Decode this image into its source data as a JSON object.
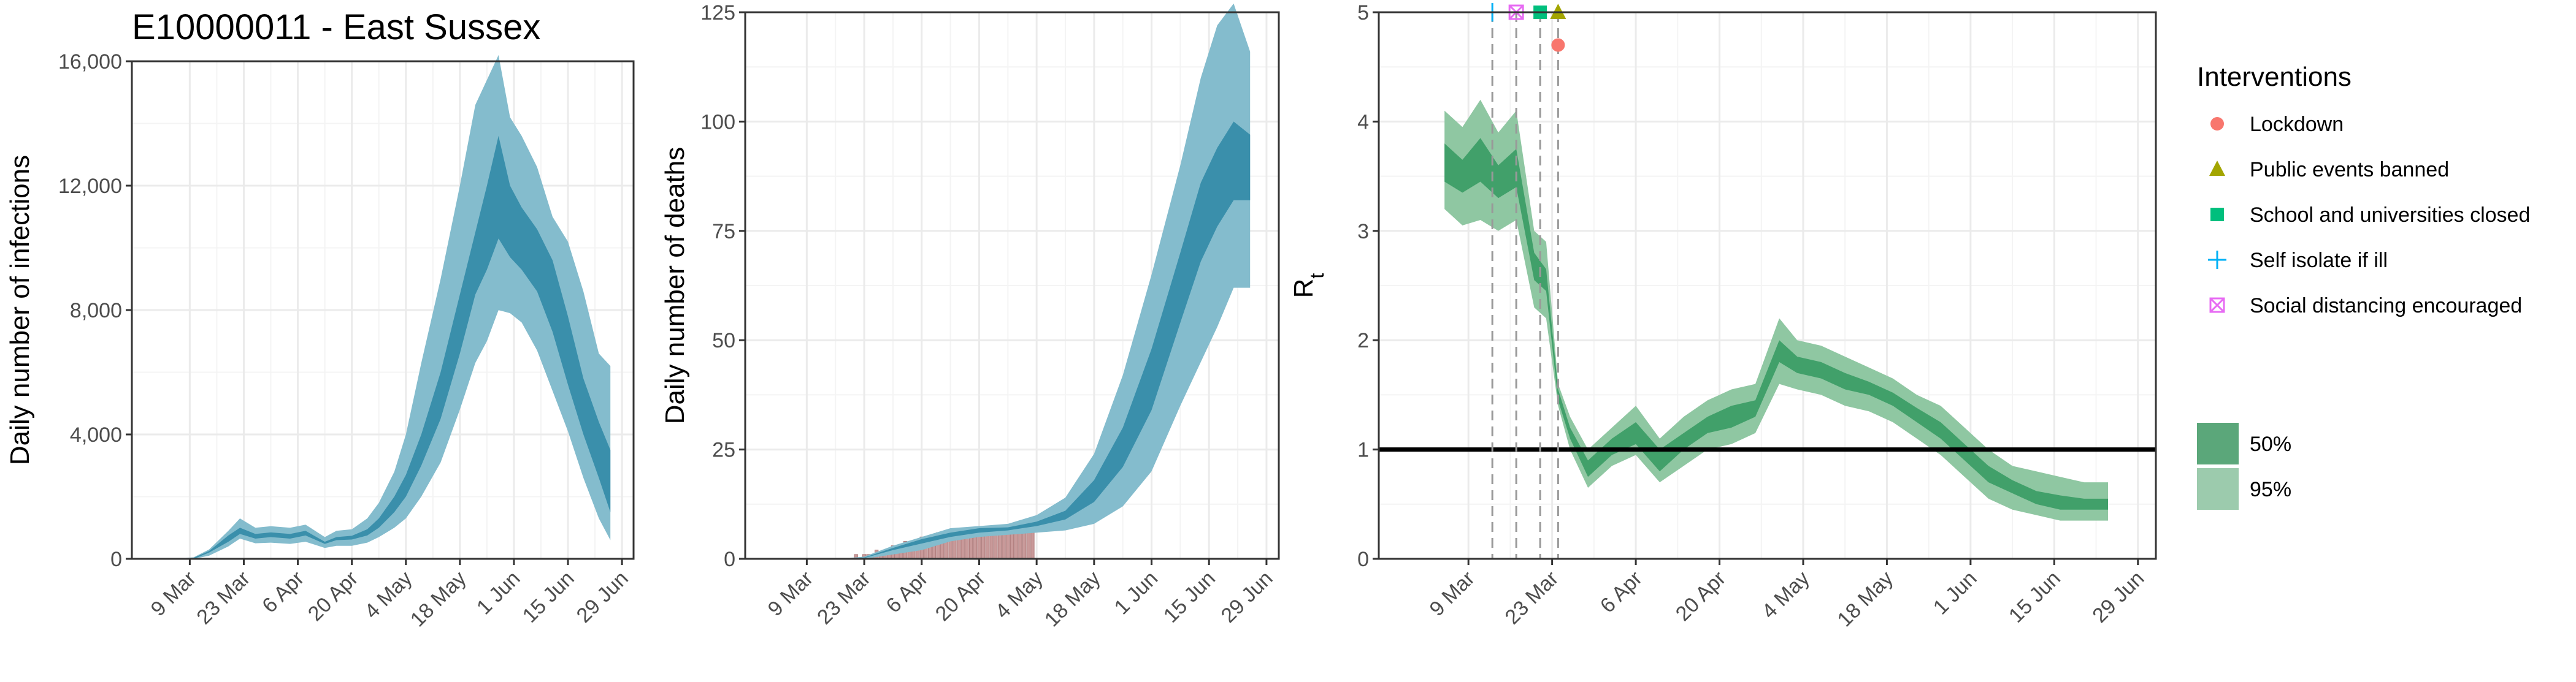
{
  "title": "E10000011 - East Sussex",
  "chart_data": [
    {
      "type": "area",
      "ylabel": "Daily number of infections",
      "xlabel": "",
      "ylim": [
        0,
        16000
      ],
      "yticks": [
        0,
        4000,
        8000,
        12000,
        16000
      ],
      "ytick_labels": [
        "0",
        "4,000",
        "8,000",
        "12,000",
        "16,000"
      ],
      "xlim": [
        "2020-02-23",
        "2020-07-02"
      ],
      "xticks": [
        "2020-03-09",
        "2020-03-23",
        "2020-04-06",
        "2020-04-20",
        "2020-05-04",
        "2020-05-18",
        "2020-06-01",
        "2020-06-15",
        "2020-06-29"
      ],
      "xtick_labels": [
        "9 Mar",
        "23 Mar",
        "6 Apr",
        "20 Apr",
        "4 May",
        "18 May",
        "1 Jun",
        "15 Jun",
        "29 Jun"
      ],
      "series": [
        {
          "band": "95%",
          "x": [
            "2020-03-05",
            "2020-03-10",
            "2020-03-14",
            "2020-03-19",
            "2020-03-22",
            "2020-03-26",
            "2020-03-30",
            "2020-04-04",
            "2020-04-08",
            "2020-04-13",
            "2020-04-16",
            "2020-04-20",
            "2020-04-24",
            "2020-04-27",
            "2020-05-01",
            "2020-05-04",
            "2020-05-08",
            "2020-05-13",
            "2020-05-18",
            "2020-05-22",
            "2020-05-25",
            "2020-05-28",
            "2020-05-31",
            "2020-06-03",
            "2020-06-07",
            "2020-06-11",
            "2020-06-15",
            "2020-06-19",
            "2020-06-23",
            "2020-06-26"
          ],
          "lower": [
            0,
            0,
            100,
            400,
            650,
            500,
            520,
            480,
            550,
            350,
            420,
            420,
            520,
            700,
            1000,
            1300,
            2000,
            3100,
            4800,
            6300,
            7000,
            8000,
            7900,
            7600,
            6700,
            5400,
            4100,
            2600,
            1300,
            600
          ],
          "upper": [
            0,
            50,
            300,
            900,
            1300,
            1000,
            1050,
            1000,
            1100,
            700,
            900,
            950,
            1300,
            1800,
            2800,
            4000,
            6300,
            9000,
            12000,
            14600,
            15400,
            16200,
            14200,
            13600,
            12600,
            11000,
            10200,
            8600,
            6600,
            6200
          ]
        },
        {
          "band": "50%",
          "x": [
            "2020-03-05",
            "2020-03-10",
            "2020-03-14",
            "2020-03-19",
            "2020-03-22",
            "2020-03-26",
            "2020-03-30",
            "2020-04-04",
            "2020-04-08",
            "2020-04-13",
            "2020-04-16",
            "2020-04-20",
            "2020-04-24",
            "2020-04-27",
            "2020-05-01",
            "2020-05-04",
            "2020-05-08",
            "2020-05-13",
            "2020-05-18",
            "2020-05-22",
            "2020-05-25",
            "2020-05-28",
            "2020-05-31",
            "2020-06-03",
            "2020-06-07",
            "2020-06-11",
            "2020-06-15",
            "2020-06-19",
            "2020-06-23",
            "2020-06-26"
          ],
          "lower": [
            0,
            0,
            200,
            550,
            800,
            650,
            700,
            650,
            750,
            480,
            600,
            620,
            750,
            1000,
            1500,
            2000,
            3000,
            4500,
            6600,
            8500,
            9300,
            10300,
            9700,
            9300,
            8600,
            7300,
            5600,
            4000,
            2600,
            1500
          ],
          "upper": [
            0,
            30,
            250,
            750,
            1000,
            800,
            850,
            800,
            900,
            550,
            700,
            740,
            950,
            1300,
            2000,
            2700,
            4000,
            6000,
            8500,
            10500,
            12000,
            13600,
            12000,
            11300,
            10600,
            9600,
            7800,
            5800,
            4400,
            3500
          ]
        }
      ]
    },
    {
      "type": "area",
      "ylabel": "Daily number of deaths",
      "xlabel": "",
      "ylim": [
        0,
        125
      ],
      "yticks": [
        0,
        25,
        50,
        75,
        100,
        125
      ],
      "ytick_labels": [
        "0",
        "25",
        "50",
        "75",
        "100",
        "125"
      ],
      "xlim": [
        "2020-02-23",
        "2020-07-02"
      ],
      "xticks": [
        "2020-03-09",
        "2020-03-23",
        "2020-04-06",
        "2020-04-20",
        "2020-05-04",
        "2020-05-18",
        "2020-06-01",
        "2020-06-15",
        "2020-06-29"
      ],
      "xtick_labels": [
        "9 Mar",
        "23 Mar",
        "6 Apr",
        "20 Apr",
        "4 May",
        "18 May",
        "1 Jun",
        "15 Jun",
        "29 Jun"
      ],
      "observed_deaths": {
        "start": "2020-03-19",
        "end": "2020-05-03",
        "values": [
          0,
          0,
          1,
          0,
          1,
          1,
          1,
          2,
          1,
          2,
          2,
          3,
          2,
          3,
          4,
          3,
          4,
          4,
          5,
          5,
          4,
          5,
          6,
          5,
          5,
          6,
          5,
          6,
          6,
          5,
          6,
          6,
          7,
          6,
          6,
          7,
          6,
          7,
          6,
          7,
          6,
          7,
          7,
          6,
          7,
          7
        ]
      },
      "series": [
        {
          "band": "95%",
          "x": [
            "2020-03-17",
            "2020-03-23",
            "2020-03-30",
            "2020-04-06",
            "2020-04-13",
            "2020-04-20",
            "2020-04-27",
            "2020-05-04",
            "2020-05-11",
            "2020-05-18",
            "2020-05-25",
            "2020-06-01",
            "2020-06-08",
            "2020-06-13",
            "2020-06-17",
            "2020-06-21",
            "2020-06-25"
          ],
          "lower": [
            0,
            0,
            1,
            2,
            4,
            5,
            5.5,
            6,
            6.5,
            8,
            12,
            20,
            35,
            45,
            53,
            62,
            62
          ],
          "upper": [
            0,
            0.5,
            3,
            5,
            7,
            7.5,
            8,
            10,
            14,
            24,
            42,
            65,
            90,
            110,
            122,
            127,
            116
          ]
        },
        {
          "band": "50%",
          "x": [
            "2020-03-17",
            "2020-03-23",
            "2020-03-30",
            "2020-04-06",
            "2020-04-13",
            "2020-04-20",
            "2020-04-27",
            "2020-05-04",
            "2020-05-11",
            "2020-05-18",
            "2020-05-25",
            "2020-06-01",
            "2020-06-08",
            "2020-06-13",
            "2020-06-17",
            "2020-06-21",
            "2020-06-25"
          ],
          "lower": [
            0,
            0.2,
            2,
            3.5,
            5,
            6,
            6.5,
            7.5,
            9,
            13,
            21,
            34,
            54,
            68,
            76,
            82,
            82
          ],
          "upper": [
            0,
            0.3,
            2.5,
            4.5,
            6,
            7,
            7.2,
            8.5,
            11,
            18,
            30,
            48,
            70,
            86,
            94,
            100,
            97
          ]
        }
      ]
    },
    {
      "type": "area",
      "ylabel": "Rt",
      "xlabel": "",
      "ylim": [
        0,
        5
      ],
      "yticks": [
        0,
        1,
        2,
        3,
        4,
        5
      ],
      "ytick_labels": [
        "0",
        "1",
        "2",
        "3",
        "4",
        "5"
      ],
      "xlim": [
        "2020-02-23",
        "2020-07-02"
      ],
      "xticks": [
        "2020-03-09",
        "2020-03-23",
        "2020-04-06",
        "2020-04-20",
        "2020-05-04",
        "2020-05-18",
        "2020-06-01",
        "2020-06-15",
        "2020-06-29"
      ],
      "xtick_labels": [
        "9 Mar",
        "23 Mar",
        "6 Apr",
        "20 Apr",
        "4 May",
        "18 May",
        "1 Jun",
        "15 Jun",
        "29 Jun"
      ],
      "reference_line": 1,
      "interventions": [
        {
          "name": "Lockdown",
          "date": "2020-03-24",
          "y": 4.7,
          "color": "#F8766D",
          "marker": "circle"
        },
        {
          "name": "Public events banned",
          "date": "2020-03-24",
          "y": 5.0,
          "color": "#A3A500",
          "marker": "triangle"
        },
        {
          "name": "School and universities closed",
          "date": "2020-03-21",
          "y": 5.0,
          "color": "#00BF7D",
          "marker": "square"
        },
        {
          "name": "Self isolate if ill",
          "date": "2020-03-13",
          "y": 5.0,
          "color": "#00B0F6",
          "marker": "plus"
        },
        {
          "name": "Social distancing encouraged",
          "date": "2020-03-17",
          "y": 5.0,
          "color": "#E76BF3",
          "marker": "square-x"
        }
      ],
      "series": [
        {
          "band": "95%",
          "x": [
            "2020-03-05",
            "2020-03-08",
            "2020-03-11",
            "2020-03-14",
            "2020-03-17",
            "2020-03-20",
            "2020-03-22",
            "2020-03-24",
            "2020-03-26",
            "2020-03-29",
            "2020-04-02",
            "2020-04-06",
            "2020-04-10",
            "2020-04-14",
            "2020-04-18",
            "2020-04-22",
            "2020-04-26",
            "2020-04-30",
            "2020-05-03",
            "2020-05-07",
            "2020-05-11",
            "2020-05-15",
            "2020-05-19",
            "2020-05-23",
            "2020-05-27",
            "2020-05-31",
            "2020-06-04",
            "2020-06-08",
            "2020-06-12",
            "2020-06-16",
            "2020-06-20",
            "2020-06-24"
          ],
          "lower": [
            3.2,
            3.05,
            3.1,
            3.0,
            3.1,
            2.3,
            2.2,
            1.4,
            1.0,
            0.65,
            0.85,
            0.95,
            0.7,
            0.85,
            1.0,
            1.05,
            1.15,
            1.6,
            1.55,
            1.5,
            1.4,
            1.35,
            1.25,
            1.1,
            0.95,
            0.75,
            0.55,
            0.45,
            0.4,
            0.35,
            0.35,
            0.35
          ],
          "upper": [
            4.1,
            3.95,
            4.2,
            3.9,
            4.1,
            3.0,
            2.9,
            1.6,
            1.3,
            1.0,
            1.2,
            1.4,
            1.1,
            1.3,
            1.45,
            1.55,
            1.6,
            2.2,
            2.0,
            1.95,
            1.85,
            1.75,
            1.65,
            1.5,
            1.4,
            1.2,
            1.0,
            0.85,
            0.8,
            0.75,
            0.7,
            0.7
          ]
        },
        {
          "band": "50%",
          "x": [
            "2020-03-05",
            "2020-03-08",
            "2020-03-11",
            "2020-03-14",
            "2020-03-17",
            "2020-03-20",
            "2020-03-22",
            "2020-03-24",
            "2020-03-26",
            "2020-03-29",
            "2020-04-02",
            "2020-04-06",
            "2020-04-10",
            "2020-04-14",
            "2020-04-18",
            "2020-04-22",
            "2020-04-26",
            "2020-04-30",
            "2020-05-03",
            "2020-05-07",
            "2020-05-11",
            "2020-05-15",
            "2020-05-19",
            "2020-05-23",
            "2020-05-27",
            "2020-05-31",
            "2020-06-04",
            "2020-06-08",
            "2020-06-12",
            "2020-06-16",
            "2020-06-20",
            "2020-06-24"
          ],
          "lower": [
            3.45,
            3.35,
            3.45,
            3.3,
            3.4,
            2.55,
            2.45,
            1.45,
            1.1,
            0.75,
            0.95,
            1.05,
            0.8,
            1.0,
            1.15,
            1.2,
            1.3,
            1.8,
            1.7,
            1.65,
            1.55,
            1.5,
            1.4,
            1.25,
            1.1,
            0.9,
            0.7,
            0.6,
            0.5,
            0.45,
            0.45,
            0.45
          ],
          "upper": [
            3.8,
            3.65,
            3.85,
            3.6,
            3.75,
            2.8,
            2.65,
            1.55,
            1.2,
            0.9,
            1.1,
            1.25,
            1.0,
            1.15,
            1.3,
            1.4,
            1.45,
            2.0,
            1.85,
            1.8,
            1.7,
            1.62,
            1.52,
            1.38,
            1.25,
            1.05,
            0.85,
            0.72,
            0.62,
            0.58,
            0.55,
            0.55
          ]
        }
      ]
    }
  ],
  "legend": {
    "interventions_title": "Interventions",
    "interventions": [
      {
        "label": "Lockdown",
        "color": "#F8766D",
        "marker": "circle"
      },
      {
        "label": "Public events banned",
        "color": "#A3A500",
        "marker": "triangle"
      },
      {
        "label": "School and universities closed",
        "color": "#00BF7D",
        "marker": "square"
      },
      {
        "label": "Self isolate if ill",
        "color": "#00B0F6",
        "marker": "plus"
      },
      {
        "label": "Social distancing encouraged",
        "color": "#E76BF3",
        "marker": "square-x"
      }
    ],
    "bands": [
      {
        "label": "50%",
        "color": "#5ba77a"
      },
      {
        "label": "95%",
        "color": "#9ccbad"
      }
    ]
  },
  "colors": {
    "blue_95": "#84bccd",
    "blue_50": "#3a8fab",
    "green_95": "#8fc7a2",
    "green_50": "#41a06a",
    "observed_bar": "#c99a9a",
    "grid": "#ebebeb",
    "panel_border": "#333333"
  }
}
